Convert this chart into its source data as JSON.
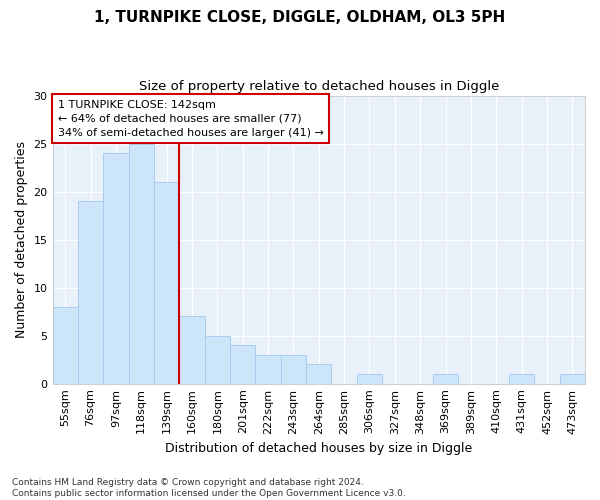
{
  "title": "1, TURNPIKE CLOSE, DIGGLE, OLDHAM, OL3 5PH",
  "subtitle": "Size of property relative to detached houses in Diggle",
  "xlabel": "Distribution of detached houses by size in Diggle",
  "ylabel": "Number of detached properties",
  "categories": [
    "55sqm",
    "76sqm",
    "97sqm",
    "118sqm",
    "139sqm",
    "160sqm",
    "180sqm",
    "201sqm",
    "222sqm",
    "243sqm",
    "264sqm",
    "285sqm",
    "306sqm",
    "327sqm",
    "348sqm",
    "369sqm",
    "389sqm",
    "410sqm",
    "431sqm",
    "452sqm",
    "473sqm"
  ],
  "values": [
    8,
    19,
    24,
    25,
    21,
    7,
    5,
    4,
    3,
    3,
    2,
    0,
    1,
    0,
    0,
    1,
    0,
    0,
    1,
    0,
    1
  ],
  "bar_color": "#cce5f8",
  "bar_edge_color": "#aaccee",
  "red_line_x": 4.5,
  "annotation_text": "1 TURNPIKE CLOSE: 142sqm\n← 64% of detached houses are smaller (77)\n34% of semi-detached houses are larger (41) →",
  "annotation_box_facecolor": "#ffffff",
  "annotation_box_edgecolor": "#cc0000",
  "line_color": "#cc0000",
  "ylim": [
    0,
    30
  ],
  "yticks": [
    0,
    5,
    10,
    15,
    20,
    25,
    30
  ],
  "footnote": "Contains HM Land Registry data © Crown copyright and database right 2024.\nContains public sector information licensed under the Open Government Licence v3.0.",
  "fig_background": "#ffffff",
  "ax_background": "#e8f0fa",
  "grid_color": "#ffffff",
  "title_fontsize": 11,
  "subtitle_fontsize": 9.5,
  "ylabel_fontsize": 9,
  "xlabel_fontsize": 9,
  "tick_fontsize": 8,
  "annotation_fontsize": 8,
  "footnote_fontsize": 6.5
}
